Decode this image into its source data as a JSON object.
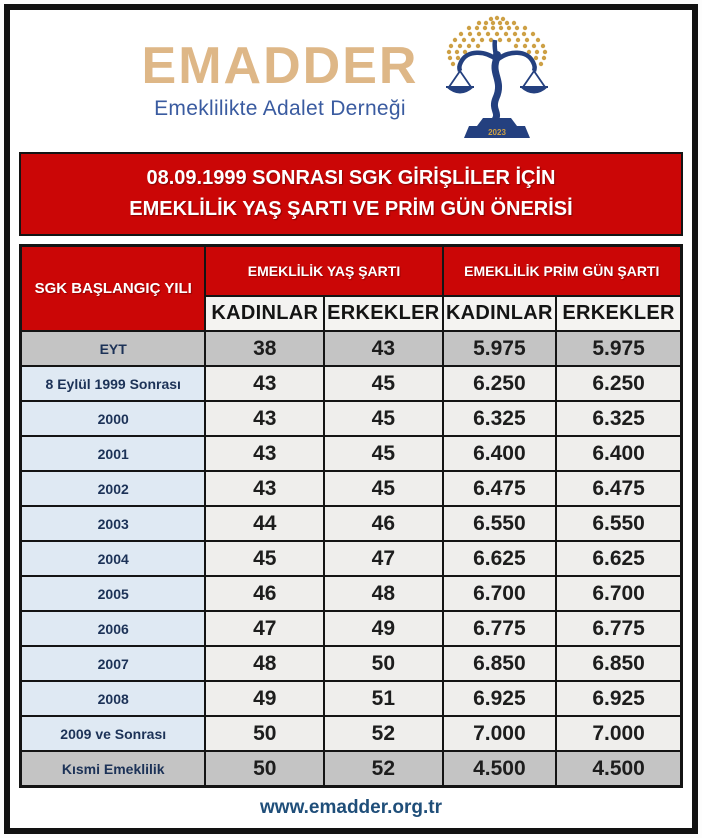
{
  "header": {
    "brand": "EMADDER",
    "subtitle": "Emeklilikte Adalet Derneği",
    "logo": {
      "year": "2023"
    }
  },
  "banner": {
    "line1": "08.09.1999 SONRASI SGK GİRİŞLİLER İÇİN",
    "line2": "EMEKLİLİK YAŞ ŞARTI VE PRİM GÜN ÖNERİSİ"
  },
  "table": {
    "col_group_headers": [
      "SGK BAŞLANGIÇ YILI",
      "EMEKLİLİK YAŞ ŞARTI",
      "EMEKLİLİK PRİM GÜN ŞARTI"
    ],
    "sub_headers": [
      "KADINLAR",
      "ERKEKLER",
      "KADINLAR",
      "ERKEKLER"
    ],
    "rows": [
      {
        "label": "EYT",
        "values": [
          "38",
          "43",
          "5.975",
          "5.975"
        ],
        "highlight": true
      },
      {
        "label": "8 Eylül 1999 Sonrası",
        "values": [
          "43",
          "45",
          "6.250",
          "6.250"
        ],
        "highlight": false
      },
      {
        "label": "2000",
        "values": [
          "43",
          "45",
          "6.325",
          "6.325"
        ],
        "highlight": false
      },
      {
        "label": "2001",
        "values": [
          "43",
          "45",
          "6.400",
          "6.400"
        ],
        "highlight": false
      },
      {
        "label": "2002",
        "values": [
          "43",
          "45",
          "6.475",
          "6.475"
        ],
        "highlight": false
      },
      {
        "label": "2003",
        "values": [
          "44",
          "46",
          "6.550",
          "6.550"
        ],
        "highlight": false
      },
      {
        "label": "2004",
        "values": [
          "45",
          "47",
          "6.625",
          "6.625"
        ],
        "highlight": false
      },
      {
        "label": "2005",
        "values": [
          "46",
          "48",
          "6.700",
          "6.700"
        ],
        "highlight": false
      },
      {
        "label": "2006",
        "values": [
          "47",
          "49",
          "6.775",
          "6.775"
        ],
        "highlight": false
      },
      {
        "label": "2007",
        "values": [
          "48",
          "50",
          "6.850",
          "6.850"
        ],
        "highlight": false
      },
      {
        "label": "2008",
        "values": [
          "49",
          "51",
          "6.925",
          "6.925"
        ],
        "highlight": false
      },
      {
        "label": "2009 ve Sonrası",
        "values": [
          "50",
          "52",
          "7.000",
          "7.000"
        ],
        "highlight": false
      },
      {
        "label": "Kısmi Emeklilik",
        "values": [
          "50",
          "52",
          "4.500",
          "4.500"
        ],
        "highlight": true
      }
    ]
  },
  "footer": {
    "url": "www.emadder.org.tr"
  },
  "colors": {
    "accent_red": "#cb0606",
    "label_blue_bg": "#dfe9f3",
    "gray_row_bg": "#c4c4c4",
    "value_cell_bg": "#efeeec",
    "navy_label_text": "#1c3257",
    "brand_gold": "#deb787",
    "brand_blue": "#3a5ba0",
    "footer_blue": "#1f4e79",
    "logo_blue": "#24407f",
    "logo_gold": "#cda045"
  }
}
